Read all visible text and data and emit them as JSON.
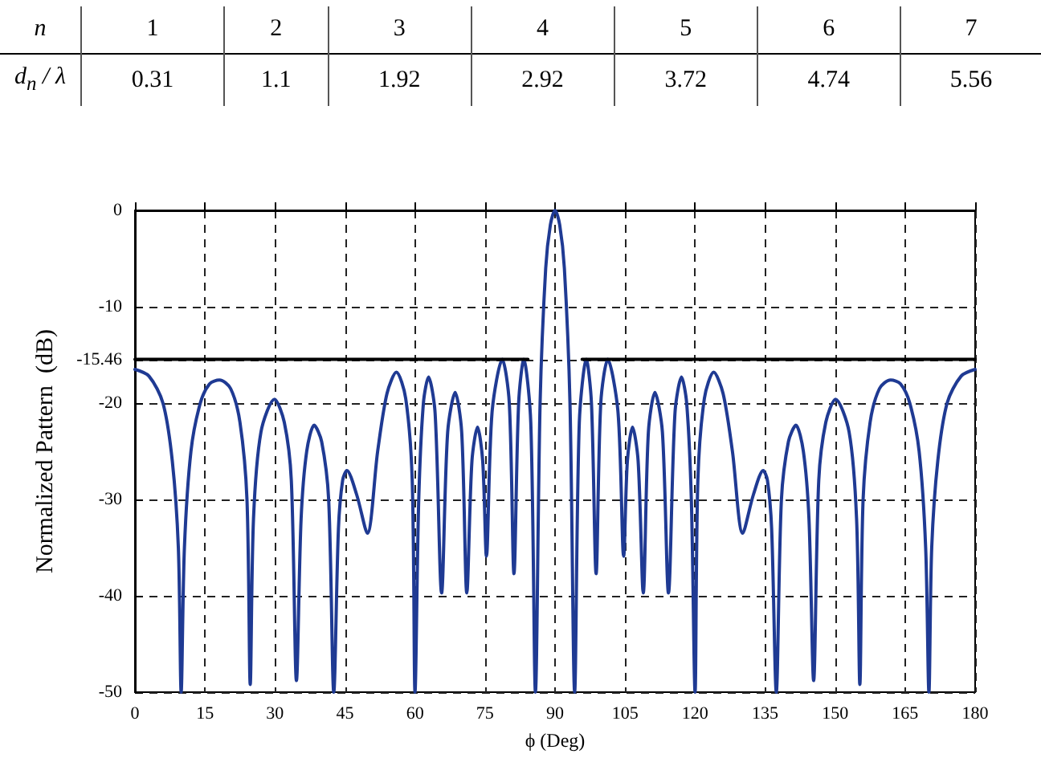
{
  "chart_data": [
    {
      "type": "other",
      "annotations": [
        "n",
        "1",
        "2",
        "3",
        "4",
        "5",
        "6",
        "7",
        "d$_{n}$ / λ",
        "0.31",
        "1.1",
        "1.92",
        "2.92",
        "3.72",
        "4.74",
        "5.56"
      ]
    },
    {
      "type": "line",
      "xlabel": "ϕ (Deg)",
      "ylabel": "Normalized Pattern  (dB)",
      "xlim": [
        0,
        180
      ],
      "xticks": [
        0,
        15,
        30,
        45,
        60,
        75,
        90,
        105,
        120,
        135,
        150,
        165,
        180
      ],
      "ylim": [
        -50,
        0
      ],
      "yticks": [
        0,
        -10,
        -15.46,
        -20,
        -30,
        -40,
        -50
      ],
      "grid": true,
      "marker": "none",
      "line_style": "solid",
      "series": [
        {
          "color": "#1f3a93",
          "x": [
            0,
            3,
            6,
            8,
            9.3,
            9.9,
            10.6,
            12,
            14,
            16,
            18.1,
            20.5,
            22.5,
            24,
            24.7,
            25.4,
            27,
            29.9,
            32,
            33.5,
            34.6,
            35.6,
            36.8,
            38.4,
            40,
            41.5,
            42.6,
            43.6,
            44.5,
            45.4,
            47.5,
            49.8,
            52,
            54,
            56,
            58,
            59.4,
            60,
            60.8,
            61.8,
            62.9,
            64.3,
            65.7,
            67,
            68.6,
            70,
            71.1,
            72.2,
            73.4,
            74.5,
            75.3,
            76.5,
            78.7,
            80.2,
            81.2,
            82.2,
            83.3,
            84.8,
            85.8,
            86.8,
            88,
            89,
            90,
            91,
            92,
            93.2,
            94.2,
            95.2,
            96.7,
            97.8,
            98.8,
            99.8,
            101.3,
            103.5,
            104.7,
            105.5,
            106.6,
            107.8,
            108.9,
            110,
            111.4,
            113,
            114.3,
            115.7,
            117.1,
            118.2,
            119.2,
            120,
            120.6,
            122,
            124,
            126,
            128,
            130.2,
            132.5,
            134.6,
            135.5,
            136.4,
            137.4,
            138.5,
            140,
            141.6,
            143.2,
            144.4,
            145.4,
            146.5,
            148,
            150.1,
            153,
            154.6,
            155.3,
            156,
            157.5,
            159.5,
            161.9,
            164,
            166,
            168,
            169.4,
            170.1,
            170.7,
            172,
            174,
            177,
            180
          ],
          "values": [
            -16.5,
            -17.2,
            -20,
            -26,
            -35,
            -50,
            -35,
            -25,
            -20,
            -18,
            -17.6,
            -18.5,
            -22,
            -30,
            -49.2,
            -32,
            -23,
            -19.6,
            -22,
            -28,
            -48.8,
            -32,
            -25,
            -22.3,
            -24,
            -30,
            -50,
            -33,
            -28,
            -27,
            -29.5,
            -33.5,
            -25,
            -19,
            -16.8,
            -19.5,
            -28,
            -50,
            -30,
            -20,
            -17.3,
            -21,
            -39.7,
            -23,
            -18.9,
            -23,
            -39.7,
            -26,
            -22.5,
            -26,
            -35.9,
            -21,
            -15.46,
            -20,
            -37.7,
            -20,
            -15.46,
            -22,
            -50,
            -20,
            -6,
            -1.5,
            0,
            -1.5,
            -6,
            -20,
            -50,
            -22,
            -15.46,
            -20,
            -37.7,
            -20,
            -15.46,
            -21,
            -35.9,
            -26,
            -22.5,
            -26,
            -39.7,
            -23,
            -18.9,
            -23,
            -39.7,
            -21,
            -17.3,
            -20,
            -30,
            -50,
            -28,
            -19.5,
            -16.8,
            -19,
            -25,
            -33.5,
            -29.5,
            -27,
            -28,
            -33,
            -50,
            -30,
            -24,
            -22.3,
            -25,
            -32,
            -48.8,
            -28,
            -22,
            -19.6,
            -23,
            -32,
            -49.2,
            -30,
            -22,
            -18.5,
            -17.6,
            -18,
            -20,
            -25,
            -35,
            -50,
            -35,
            -26,
            -20,
            -17.2,
            -16.5
          ]
        },
        {
          "color": "#000000",
          "x": [
            0,
            84.2,
            90,
            95.8,
            180
          ],
          "values": [
            -15.46,
            -15.46,
            null,
            -15.46,
            -15.46
          ]
        }
      ]
    }
  ]
}
